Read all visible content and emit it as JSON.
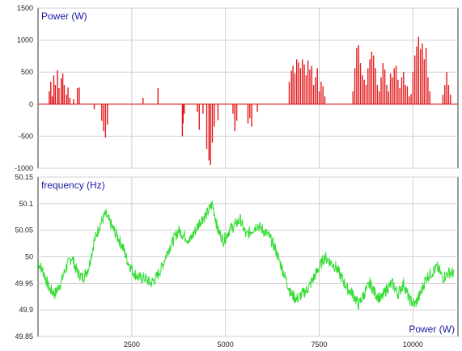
{
  "chart_data": [
    {
      "type": "bar",
      "title": "",
      "ylabel": "Power (W)",
      "xlabel": "",
      "xlim": [
        0,
        11200
      ],
      "ylim": [
        -1000,
        1500
      ],
      "yticks": [
        "1500",
        "1000",
        "500",
        "0",
        "-500",
        "-1000"
      ],
      "grid": true,
      "color": "#e31a1c",
      "samples_x": [
        300,
        340,
        380,
        420,
        460,
        520,
        560,
        620,
        660,
        700,
        760,
        800,
        850,
        950,
        1050,
        1100,
        1500,
        1700,
        1750,
        1800,
        1850,
        2800,
        3200,
        3850,
        3870,
        3900,
        4250,
        4300,
        4400,
        4500,
        4560,
        4600,
        4650,
        4700,
        4800,
        5200,
        5250,
        5300,
        5600,
        5650,
        5700,
        5850,
        6700,
        6760,
        6800,
        6850,
        6900,
        6950,
        7000,
        7050,
        7100,
        7150,
        7200,
        7250,
        7300,
        7350,
        7400,
        7450,
        7500,
        7550,
        7600,
        7650,
        8400,
        8450,
        8500,
        8550,
        8600,
        8650,
        8700,
        8750,
        8800,
        8850,
        8900,
        8950,
        9000,
        9050,
        9100,
        9150,
        9200,
        9250,
        9300,
        9350,
        9400,
        9450,
        9500,
        9550,
        9600,
        9650,
        9700,
        9750,
        9800,
        9850,
        9900,
        9950,
        10000,
        10050,
        10100,
        10150,
        10200,
        10250,
        10300,
        10350,
        10400,
        10450,
        10800,
        10850,
        10900,
        10950,
        11000
      ],
      "samples_y": [
        200,
        350,
        120,
        450,
        300,
        530,
        250,
        400,
        480,
        300,
        150,
        260,
        100,
        80,
        250,
        260,
        -80,
        -260,
        -420,
        -520,
        -320,
        100,
        250,
        -500,
        -300,
        -150,
        -120,
        -400,
        -150,
        -700,
        -880,
        -950,
        -600,
        -350,
        -250,
        -150,
        -420,
        -260,
        -300,
        -220,
        -350,
        -120,
        350,
        520,
        600,
        480,
        700,
        650,
        560,
        700,
        620,
        450,
        680,
        540,
        600,
        300,
        420,
        560,
        200,
        350,
        280,
        120,
        200,
        560,
        880,
        920,
        640,
        450,
        380,
        300,
        560,
        700,
        820,
        760,
        560,
        300,
        200,
        420,
        640,
        540,
        300,
        200,
        480,
        420,
        560,
        600,
        380,
        250,
        420,
        500,
        300,
        280,
        120,
        160,
        500,
        760,
        900,
        1050,
        860,
        950,
        700,
        880,
        420,
        200,
        150,
        300,
        500,
        300,
        150
      ],
      "legend": "none"
    },
    {
      "type": "line",
      "title": "",
      "ylabel": "frequency (Hz)",
      "xlabel": "Power (W)",
      "xlim": [
        0,
        11200
      ],
      "ylim": [
        49.85,
        50.15
      ],
      "xticks": [
        "2500",
        "5000",
        "7500",
        "10000"
      ],
      "yticks": [
        "50.15",
        "50.1",
        "50.05",
        "50",
        "49.95",
        "49.9",
        "49.85"
      ],
      "grid": true,
      "color": "#33dd33",
      "x": [
        0,
        150,
        300,
        450,
        600,
        750,
        900,
        1050,
        1200,
        1350,
        1500,
        1650,
        1800,
        1950,
        2100,
        2250,
        2400,
        2550,
        2700,
        2850,
        3000,
        3150,
        3300,
        3450,
        3600,
        3750,
        3900,
        4050,
        4200,
        4350,
        4500,
        4650,
        4800,
        4950,
        5100,
        5250,
        5400,
        5550,
        5700,
        5850,
        6000,
        6150,
        6300,
        6450,
        6600,
        6750,
        6900,
        7050,
        7200,
        7350,
        7500,
        7650,
        7800,
        7950,
        8100,
        8250,
        8400,
        8550,
        8700,
        8850,
        9000,
        9150,
        9300,
        9450,
        9600,
        9750,
        9900,
        10050,
        10200,
        10350,
        10500,
        10650,
        10800,
        10950,
        11100
      ],
      "y": [
        49.99,
        49.97,
        49.94,
        49.93,
        49.95,
        49.98,
        50.0,
        49.97,
        49.96,
        49.98,
        50.03,
        50.06,
        50.08,
        50.06,
        50.04,
        50.02,
        49.99,
        49.97,
        49.96,
        49.96,
        49.95,
        49.96,
        49.98,
        50.01,
        50.03,
        50.05,
        50.04,
        50.03,
        50.05,
        50.07,
        50.08,
        50.1,
        50.05,
        50.03,
        50.05,
        50.06,
        50.07,
        50.04,
        50.05,
        50.06,
        50.05,
        50.04,
        50.02,
        49.99,
        49.96,
        49.93,
        49.92,
        49.93,
        49.94,
        49.96,
        49.98,
        50.0,
        49.99,
        49.98,
        49.96,
        49.94,
        49.93,
        49.91,
        49.93,
        49.95,
        49.93,
        49.92,
        49.94,
        49.95,
        49.93,
        49.95,
        49.92,
        49.91,
        49.93,
        49.96,
        49.97,
        49.98,
        49.96,
        49.97,
        49.97
      ],
      "legend": "none"
    }
  ]
}
